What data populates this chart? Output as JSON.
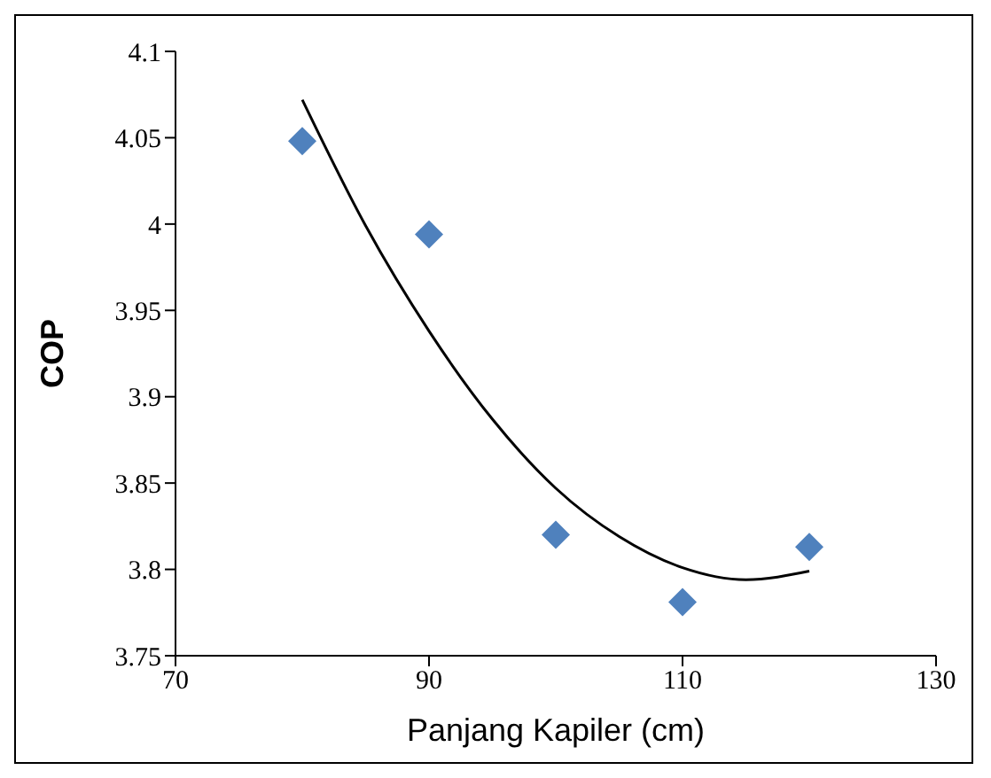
{
  "chart_data": {
    "type": "scatter",
    "xlabel": "Panjang Kapiler (cm)",
    "ylabel": "COP",
    "xlim": [
      70,
      130
    ],
    "xticks": [
      70,
      90,
      110,
      130
    ],
    "ylim": [
      3.75,
      4.1
    ],
    "yticks": [
      3.75,
      3.8,
      3.85,
      3.9,
      3.95,
      4,
      4.05,
      4.1
    ],
    "grid": false,
    "legend": false,
    "marker": "diamond",
    "series": [
      {
        "color": "#4f81bd",
        "x": [
          80,
          90,
          100,
          110,
          120
        ],
        "values": [
          4.048,
          3.994,
          3.82,
          3.781,
          3.813
        ]
      },
      {
        "type": "line",
        "color": "#000000",
        "marker": "none",
        "x": [
          80,
          85,
          90,
          95,
          100,
          105,
          110,
          115,
          120
        ],
        "values": [
          4.072,
          3.999,
          3.938,
          3.887,
          3.847,
          3.819,
          3.801,
          3.794,
          3.799
        ]
      }
    ]
  }
}
